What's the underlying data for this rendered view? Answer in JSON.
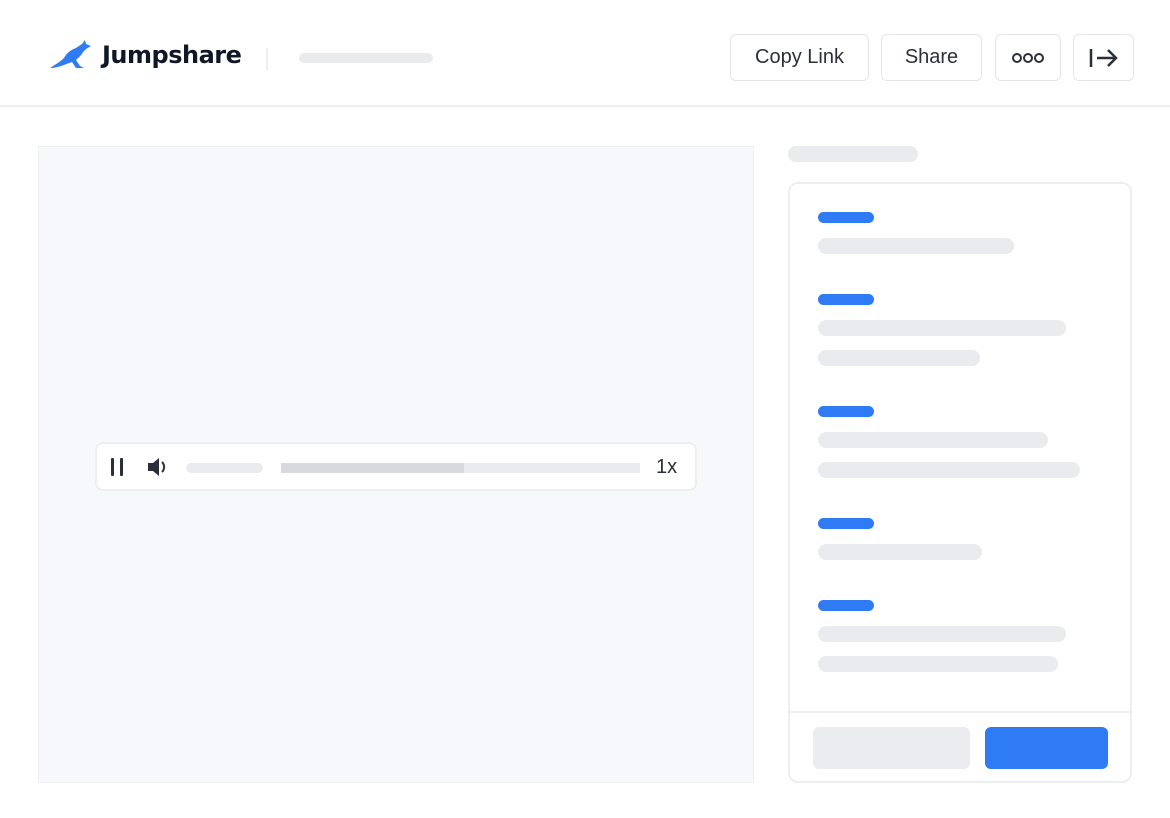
{
  "header": {
    "brand": "Jumpshare",
    "buttons": {
      "copy_link": "Copy Link",
      "share": "Share"
    },
    "icons": [
      "kangaroo-logo-icon",
      "more-icon",
      "exit-arrow-icon"
    ]
  },
  "player": {
    "speed": "1x",
    "progress_percent": 51,
    "icons": [
      "pause-icon",
      "volume-icon"
    ]
  },
  "colors": {
    "accent": "#2f7bf6",
    "skeleton": "#eaebef"
  }
}
